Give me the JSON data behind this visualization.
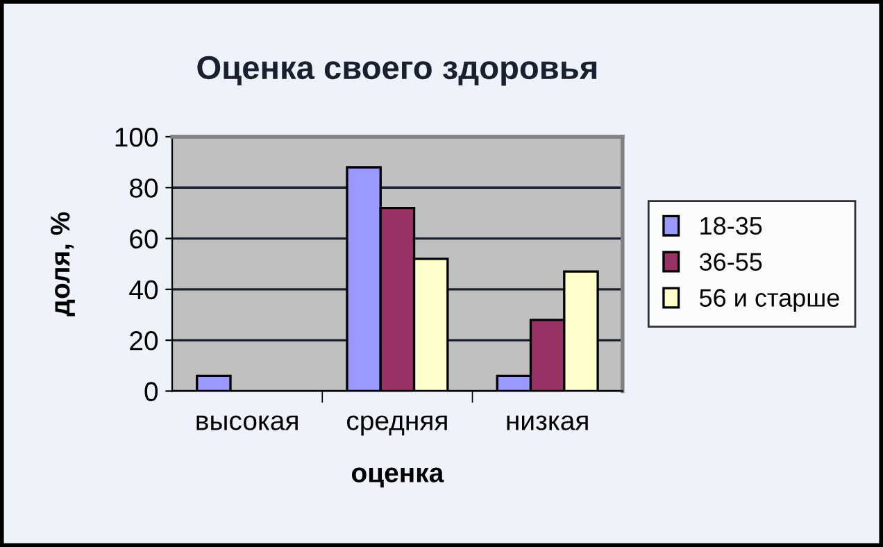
{
  "chart_data": {
    "type": "bar",
    "title": "Оценка своего здоровья",
    "xlabel": "оценка",
    "ylabel": "доля, %",
    "categories": [
      "высокая",
      "средняя",
      "низкая"
    ],
    "series": [
      {
        "name": "18-35",
        "color": "#9999ff",
        "values": [
          6,
          88,
          6
        ]
      },
      {
        "name": "36-55",
        "color": "#993366",
        "values": [
          null,
          72,
          28
        ]
      },
      {
        "name": "56 и старше",
        "color": "#ffffcc",
        "values": [
          null,
          52,
          47
        ]
      }
    ],
    "ylim": [
      0,
      100
    ],
    "yticks": [
      0,
      20,
      40,
      60,
      80,
      100
    ],
    "grid": "y",
    "legend": "right"
  }
}
